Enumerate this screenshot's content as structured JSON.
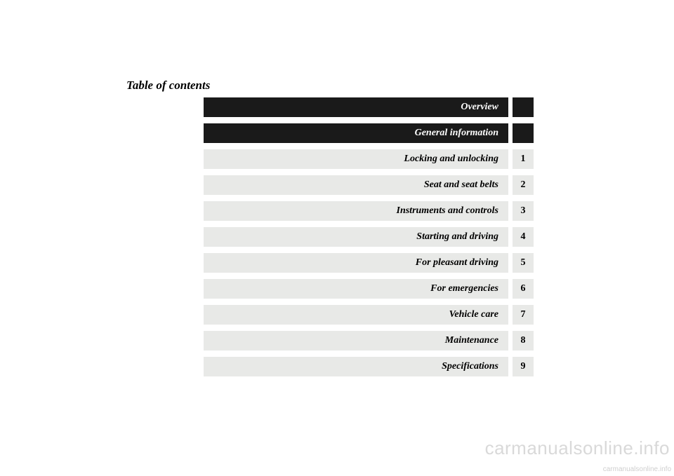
{
  "title": "Table of contents",
  "rows": [
    {
      "label": "Overview",
      "tab": "",
      "style": "dark"
    },
    {
      "label": "General information",
      "tab": "",
      "style": "dark"
    },
    {
      "label": "Locking and unlocking",
      "tab": "1",
      "style": "light"
    },
    {
      "label": "Seat and seat belts",
      "tab": "2",
      "style": "light"
    },
    {
      "label": "Instruments and controls",
      "tab": "3",
      "style": "light"
    },
    {
      "label": "Starting and driving",
      "tab": "4",
      "style": "light"
    },
    {
      "label": "For pleasant driving",
      "tab": "5",
      "style": "light"
    },
    {
      "label": "For emergencies",
      "tab": "6",
      "style": "light"
    },
    {
      "label": "Vehicle care",
      "tab": "7",
      "style": "light"
    },
    {
      "label": "Maintenance",
      "tab": "8",
      "style": "light"
    },
    {
      "label": "Specifications",
      "tab": "9",
      "style": "light"
    }
  ],
  "watermark_large": "carmanualsonline.info",
  "watermark_small": "carmanualsonline.info",
  "colors": {
    "dark_bg": "#1a1a1a",
    "light_bg": "#e8e9e7",
    "page_bg": "#ffffff",
    "watermark": "#d9d9d9"
  }
}
